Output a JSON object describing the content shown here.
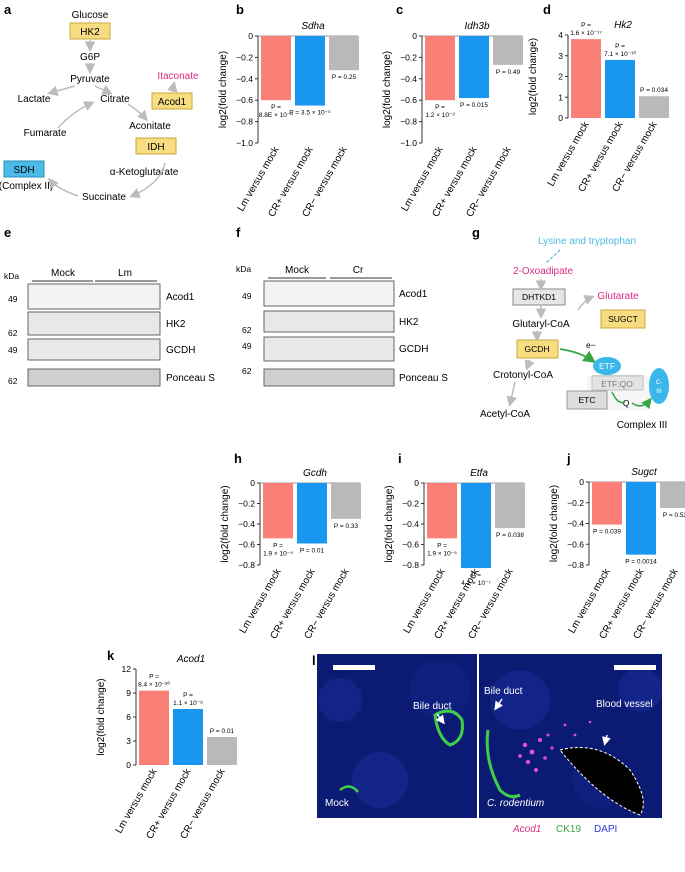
{
  "colors": {
    "lm": "#FA7F76",
    "crp": "#1896F0",
    "crm": "#B9B9B9",
    "yellow": "#F8DC82",
    "sdh": "#49BBE6",
    "magenta": "#DA2C82",
    "cyan": "#4CBDE5",
    "green": "#35A845",
    "etf": "#39B7EA"
  },
  "panel_a": {
    "letter": "a",
    "glucose": "Glucose",
    "hk2": "HK2",
    "g6p": "G6P",
    "pyruvate": "Pyruvate",
    "lactate": "Lactate",
    "citrate": "Citrate",
    "itaconate": "Itaconate",
    "acod1": "Acod1",
    "aconitate": "Aconitate",
    "fumarate": "Fumarate",
    "idh": "IDH",
    "sdh": "SDH",
    "complex2": "(Complex II)",
    "akg": "α-Ketoglutarate",
    "succinate": "Succinate"
  },
  "panel_e": {
    "letter": "e",
    "kda": "kDa",
    "group1": "Mock",
    "group2": "Lm",
    "markers": [
      "49",
      "62",
      "49",
      "62"
    ],
    "bands": [
      "Acod1",
      "HK2",
      "GCDH",
      "Ponceau S"
    ]
  },
  "panel_f": {
    "letter": "f",
    "kda": "kDa",
    "group1": "Mock",
    "group2": "Cr",
    "markers": [
      "49",
      "62",
      "49",
      "62"
    ],
    "bands": [
      "Acod1",
      "HK2",
      "GCDH",
      "Ponceau S"
    ]
  },
  "panel_g": {
    "letter": "g",
    "lys": "Lysine and tryptophan",
    "oxo": "2-Oxoadipate",
    "dhtkd1": "DHTKD1",
    "glutarate": "Glutarate",
    "glutaryl": "Glutaryl-CoA",
    "sugct": "SUGCT",
    "gcdh": "GCDH",
    "eminus": "e−",
    "etf": "ETF",
    "crotonyl": "Crotonyl-CoA",
    "etfqo": "ETF:QO",
    "c3": "C-\nIII",
    "etc": "ETC",
    "q": "Q",
    "acetyl": "Acetyl-CoA",
    "complex3": "Complex III"
  },
  "panel_l": {
    "letter": "l",
    "bile_duct_left": "Bile duct",
    "bile_duct_right": "Bile duct",
    "blood_vessel": "Blood vessel",
    "mock": "Mock",
    "crod": "C. rodentium",
    "legend": [
      "Acod1",
      "CK19",
      "DAPI"
    ]
  },
  "chart_data": [
    {
      "panel": "b",
      "type": "bar",
      "title": "Sdha",
      "ylabel": "log2(fold change)",
      "categories": [
        "Lm versus mock",
        "CR+ versus mock",
        "CR− versus mock"
      ],
      "values": [
        -0.6,
        -0.65,
        -0.32
      ],
      "ylim": [
        -1.0,
        0
      ],
      "ticks": [
        "0",
        "−0.2",
        "−0.4",
        "−0.6",
        "−0.8",
        "−1.0"
      ],
      "annotations": [
        "P =\n8.8E × 10⁻⁴",
        "P = 3.5 × 10⁻⁵",
        "P = 0.25"
      ]
    },
    {
      "panel": "c",
      "type": "bar",
      "title": "Idh3b",
      "ylabel": "log2(fold change)",
      "categories": [
        "Lm versus mock",
        "CR+ versus mock",
        "CR− versus mock"
      ],
      "values": [
        -0.6,
        -0.58,
        -0.27
      ],
      "ylim": [
        -1.0,
        0
      ],
      "ticks": [
        "0",
        "−0.2",
        "−0.4",
        "−0.6",
        "−0.8",
        "−1.0"
      ],
      "annotations": [
        "P =\n1.2 × 10⁻³",
        "P = 0.015",
        "P = 0.49"
      ]
    },
    {
      "panel": "d",
      "type": "bar",
      "title": "Hk2",
      "ylabel": "log2(fold change)",
      "categories": [
        "Lm versus mock",
        "CR+ versus mock",
        "CR− versus mock"
      ],
      "values": [
        3.8,
        2.8,
        1.05
      ],
      "ylim": [
        0,
        4
      ],
      "ticks": [
        "0",
        "1",
        "2",
        "3",
        "4"
      ],
      "annotations": [
        "P =\n1.6 × 10⁻¹⁷",
        "P =\n7.1 × 10⁻¹⁰",
        "P = 0.034"
      ]
    },
    {
      "panel": "h",
      "type": "bar",
      "title": "Gcdh",
      "ylabel": "log2(fold change)",
      "categories": [
        "Lm versus mock",
        "CR+ versus mock",
        "CR− versus mock"
      ],
      "values": [
        -0.54,
        -0.59,
        -0.35
      ],
      "ylim": [
        -0.8,
        0
      ],
      "ticks": [
        "0",
        "−0.2",
        "−0.4",
        "−0.6",
        "−0.8"
      ],
      "annotations": [
        "P =\n1.9 × 10⁻⁵",
        "P = 0.01",
        "P = 0.33"
      ]
    },
    {
      "panel": "i",
      "type": "bar",
      "title": "Etfa",
      "ylabel": "log2(fold change)",
      "categories": [
        "Lm versus mock",
        "CR+ versus mock",
        "CR− versus mock"
      ],
      "values": [
        -0.54,
        -0.83,
        -0.44
      ],
      "ylim": [
        -0.8,
        0
      ],
      "ticks": [
        "0",
        "−0.2",
        "−0.4",
        "−0.6",
        "−0.8"
      ],
      "annotations": [
        "P =\n1.9 × 10⁻⁵",
        "P =\n4.2 × 10⁻⁷",
        "P = 0.038"
      ]
    },
    {
      "panel": "j",
      "type": "bar",
      "title": "Sugct",
      "ylabel": "log2(fold change)",
      "categories": [
        "Lm versus mock",
        "CR+ versus mock",
        "CR− versus mock"
      ],
      "values": [
        -0.41,
        -0.7,
        -0.25
      ],
      "ylim": [
        -0.8,
        0
      ],
      "ticks": [
        "0",
        "−0.2",
        "−0.4",
        "−0.6",
        "−0.8"
      ],
      "annotations": [
        "P = 0.039",
        "P = 0.0014",
        "P = 0.52"
      ]
    },
    {
      "panel": "k",
      "type": "bar",
      "title": "Acod1",
      "ylabel": "log2(fold change)",
      "categories": [
        "Lm versus mock",
        "CR+ versus mock",
        "CR− versus mock"
      ],
      "values": [
        9.3,
        7.0,
        3.5
      ],
      "ylim": [
        0,
        12
      ],
      "ticks": [
        "0",
        "3",
        "6",
        "9",
        "12"
      ],
      "annotations": [
        "P =\n8.4 × 10⁻²⁰",
        "P =\n1.1 × 10⁻⁸",
        "P = 0.01"
      ]
    }
  ]
}
